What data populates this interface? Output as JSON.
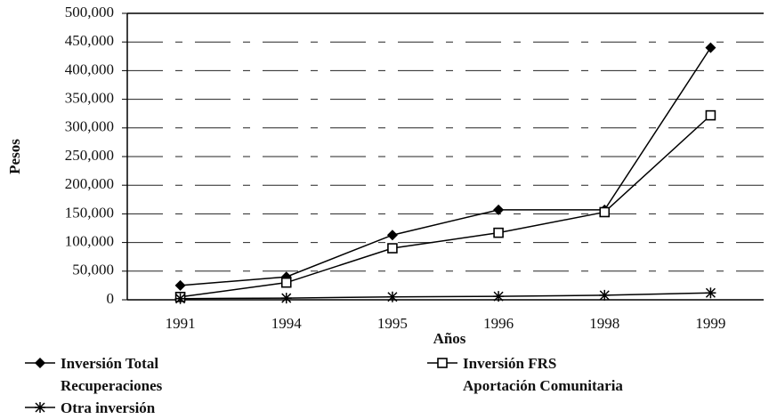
{
  "chart_data": {
    "type": "line",
    "x_label": "Años",
    "y_label": "Pesos",
    "categories": [
      "1991",
      "1994",
      "1995",
      "1996",
      "1998",
      "1999"
    ],
    "series": [
      {
        "name": "Inversión Total\nRecuperaciones",
        "color": "#000000",
        "marker": "diamond",
        "values": [
          25000,
          40000,
          113000,
          157000,
          157000,
          440000
        ]
      },
      {
        "name": "Inversión FRS\nAportación Comunitaria",
        "color": "#000000",
        "marker": "square",
        "values": [
          5000,
          30000,
          90000,
          117000,
          153000,
          322000
        ]
      },
      {
        "name": "Otra inversión",
        "color": "#000000",
        "marker": "asterisk",
        "values": [
          2000,
          3000,
          5000,
          6000,
          8000,
          12000
        ]
      }
    ],
    "ylim": [
      0,
      500000
    ],
    "yticks": [
      0,
      {
        "value": 50000,
        "label": "50,000"
      },
      {
        "value": 100000,
        "label": "100,000"
      },
      {
        "value": 150000,
        "label": "150,000"
      },
      {
        "value": 200000,
        "label": "200,000"
      },
      {
        "value": 250000,
        "label": "250,000"
      },
      {
        "value": 300000,
        "label": "300,000"
      },
      {
        "value": 350000,
        "label": "350,000"
      },
      {
        "value": 400000,
        "label": "400,000"
      },
      {
        "value": 450000,
        "label": "450,000"
      },
      {
        "value": 500000,
        "label": "500,000"
      }
    ],
    "grid": true
  }
}
